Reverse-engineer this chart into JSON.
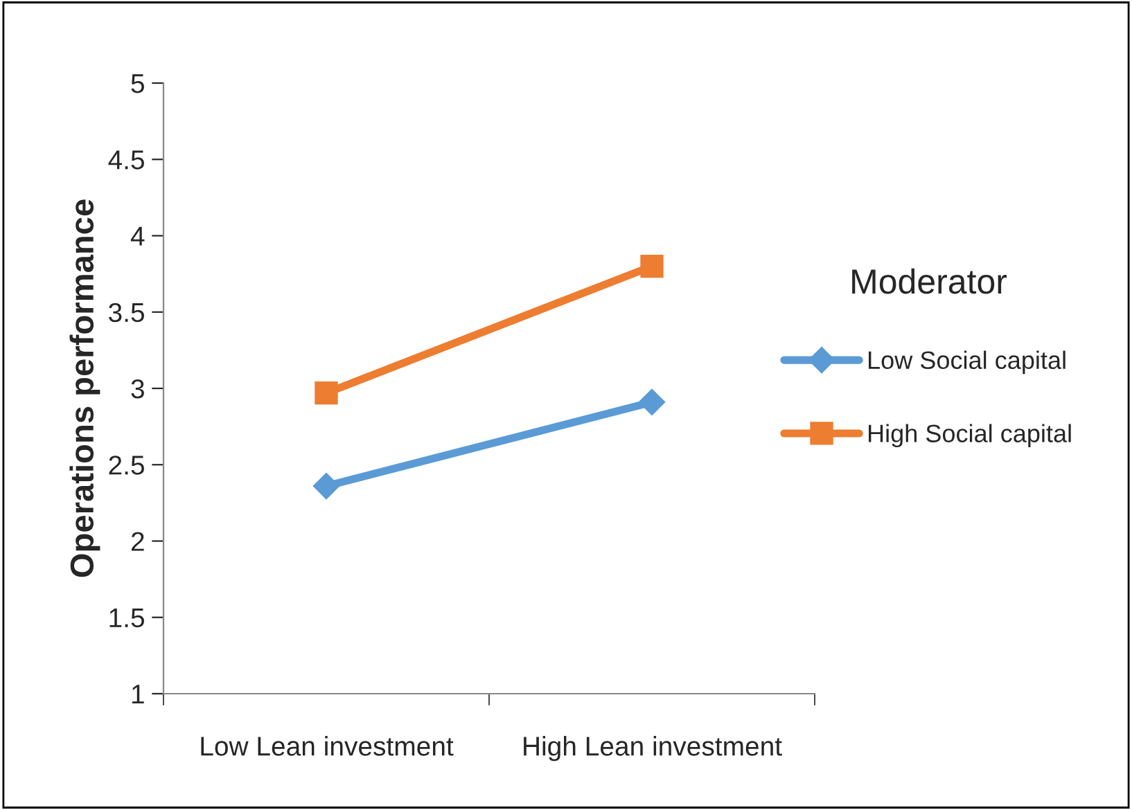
{
  "chart_data": {
    "type": "line",
    "ylabel": "Operations performance",
    "legend_title": "Moderator",
    "categories": [
      "Low Lean investment",
      "High Lean investment"
    ],
    "series": [
      {
        "name": "Low Social capital",
        "color": "#5b9bd5",
        "marker": "diamond",
        "values": [
          2.36,
          2.91
        ]
      },
      {
        "name": "High Social capital",
        "color": "#ed7d31",
        "marker": "square",
        "values": [
          2.97,
          3.8
        ]
      }
    ],
    "ylim": [
      1,
      5
    ],
    "yticks": [
      1,
      1.5,
      2,
      2.5,
      3,
      3.5,
      4,
      4.5,
      5
    ],
    "grid": false,
    "legend": "right",
    "line_style": "solid"
  }
}
